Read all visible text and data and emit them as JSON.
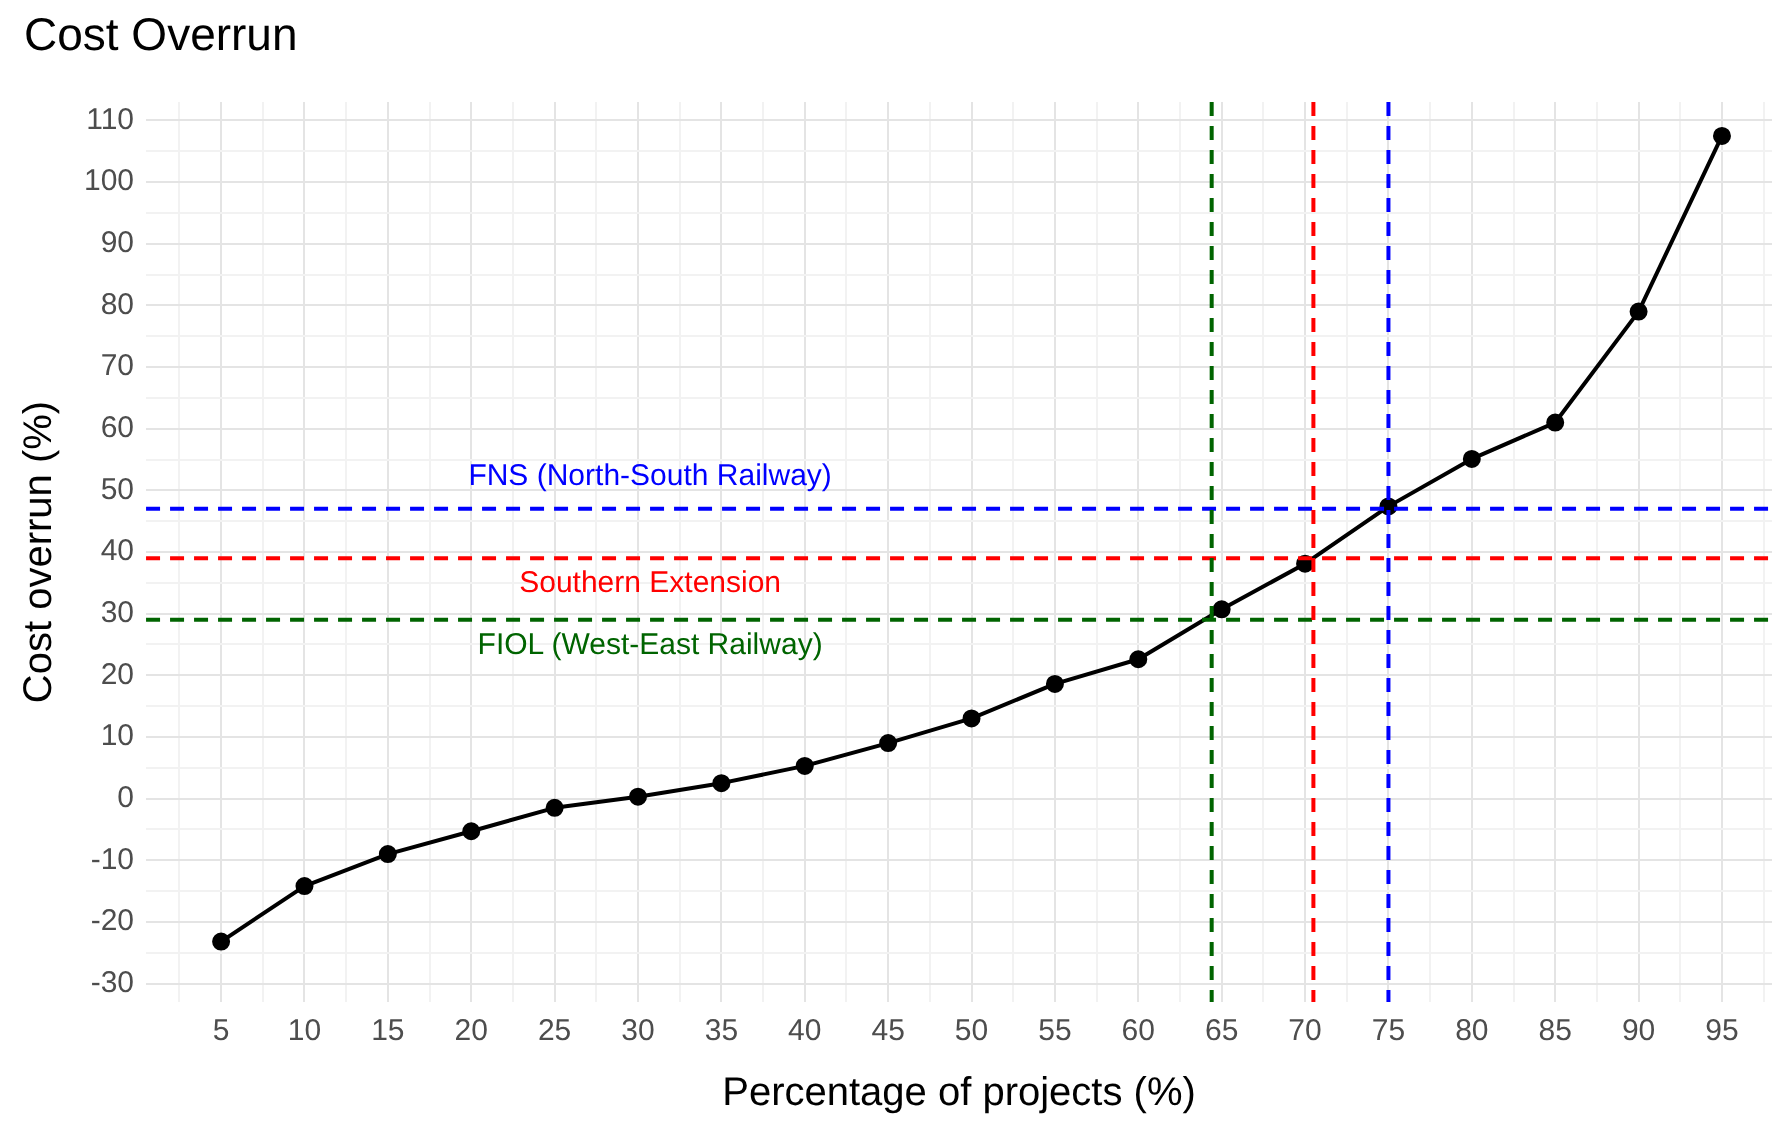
{
  "chart_data": {
    "type": "line",
    "title": "Cost Overrun",
    "xlabel": "Percentage of projects (%)",
    "ylabel": "Cost overrun (%)",
    "x": [
      5,
      10,
      15,
      20,
      25,
      30,
      35,
      40,
      45,
      50,
      55,
      60,
      65,
      70,
      75,
      80,
      85,
      90,
      95
    ],
    "series": [
      {
        "color": "#000000",
        "values": [
          -23.2,
          -14.2,
          -9,
          -5.3,
          -1.5,
          0.3,
          2.5,
          5.3,
          9,
          13,
          18.6,
          22.6,
          30.7,
          38.1,
          47.4,
          55.1,
          61,
          79,
          107.5
        ]
      }
    ],
    "xlim": [
      0.5,
      98
    ],
    "ylim": [
      -33,
      113
    ],
    "xticks": [
      5,
      10,
      15,
      20,
      25,
      30,
      35,
      40,
      45,
      50,
      55,
      60,
      65,
      70,
      75,
      80,
      85,
      90,
      95,
      {
        "value": 2.5,
        "label": null
      },
      {
        "value": 7.5,
        "label": null
      },
      {
        "value": 12.5,
        "label": null
      },
      {
        "value": 17.5,
        "label": null
      },
      {
        "value": 22.5,
        "label": null
      },
      {
        "value": 27.5,
        "label": null
      },
      {
        "value": 32.5,
        "label": null
      },
      {
        "value": 37.5,
        "label": null
      },
      {
        "value": 42.5,
        "label": null
      },
      {
        "value": 47.5,
        "label": null
      },
      {
        "value": 52.5,
        "label": null
      },
      {
        "value": 57.5,
        "label": null
      },
      {
        "value": 62.5,
        "label": null
      },
      {
        "value": 67.5,
        "label": null
      },
      {
        "value": 72.5,
        "label": null
      },
      {
        "value": 77.5,
        "label": null
      },
      {
        "value": 82.5,
        "label": null
      },
      {
        "value": 87.5,
        "label": null
      },
      {
        "value": 92.5,
        "label": null
      },
      {
        "value": 97.5,
        "label": null
      }
    ],
    "yticks": [
      -30,
      -20,
      -10,
      0,
      10,
      20,
      30,
      40,
      50,
      60,
      70,
      80,
      90,
      100,
      110,
      {
        "value": -25,
        "label": null
      },
      {
        "value": -15,
        "label": null
      },
      {
        "value": -5,
        "label": null
      },
      {
        "value": 5,
        "label": null
      },
      {
        "value": 15,
        "label": null
      },
      {
        "value": 25,
        "label": null
      },
      {
        "value": 35,
        "label": null
      },
      {
        "value": 45,
        "label": null
      },
      {
        "value": 55,
        "label": null
      },
      {
        "value": 65,
        "label": null
      },
      {
        "value": 75,
        "label": null
      },
      {
        "value": 85,
        "label": null
      },
      {
        "value": 95,
        "label": null
      },
      {
        "value": 105,
        "label": null
      }
    ],
    "grid": true,
    "marker": "circle",
    "line_style": "solid",
    "ref_lines": [
      {
        "axis": "y",
        "value": 47,
        "color": "#0000ff",
        "line_style": "dashed",
        "label": "FNS (North-South Railway)"
      },
      {
        "axis": "y",
        "value": 39,
        "color": "#ff0000",
        "line_style": "dashed",
        "label": "Southern Extension"
      },
      {
        "axis": "y",
        "value": 29,
        "color": "#006400",
        "line_style": "dashed",
        "label": "FIOL (West-East Railway)"
      },
      {
        "axis": "x",
        "value": 75,
        "color": "#0000ff",
        "line_style": "dashed"
      },
      {
        "axis": "x",
        "value": 70.5,
        "color": "#ff0000",
        "line_style": "dashed"
      },
      {
        "axis": "x",
        "value": 64.4,
        "color": "#006400",
        "line_style": "dashed"
      }
    ]
  }
}
